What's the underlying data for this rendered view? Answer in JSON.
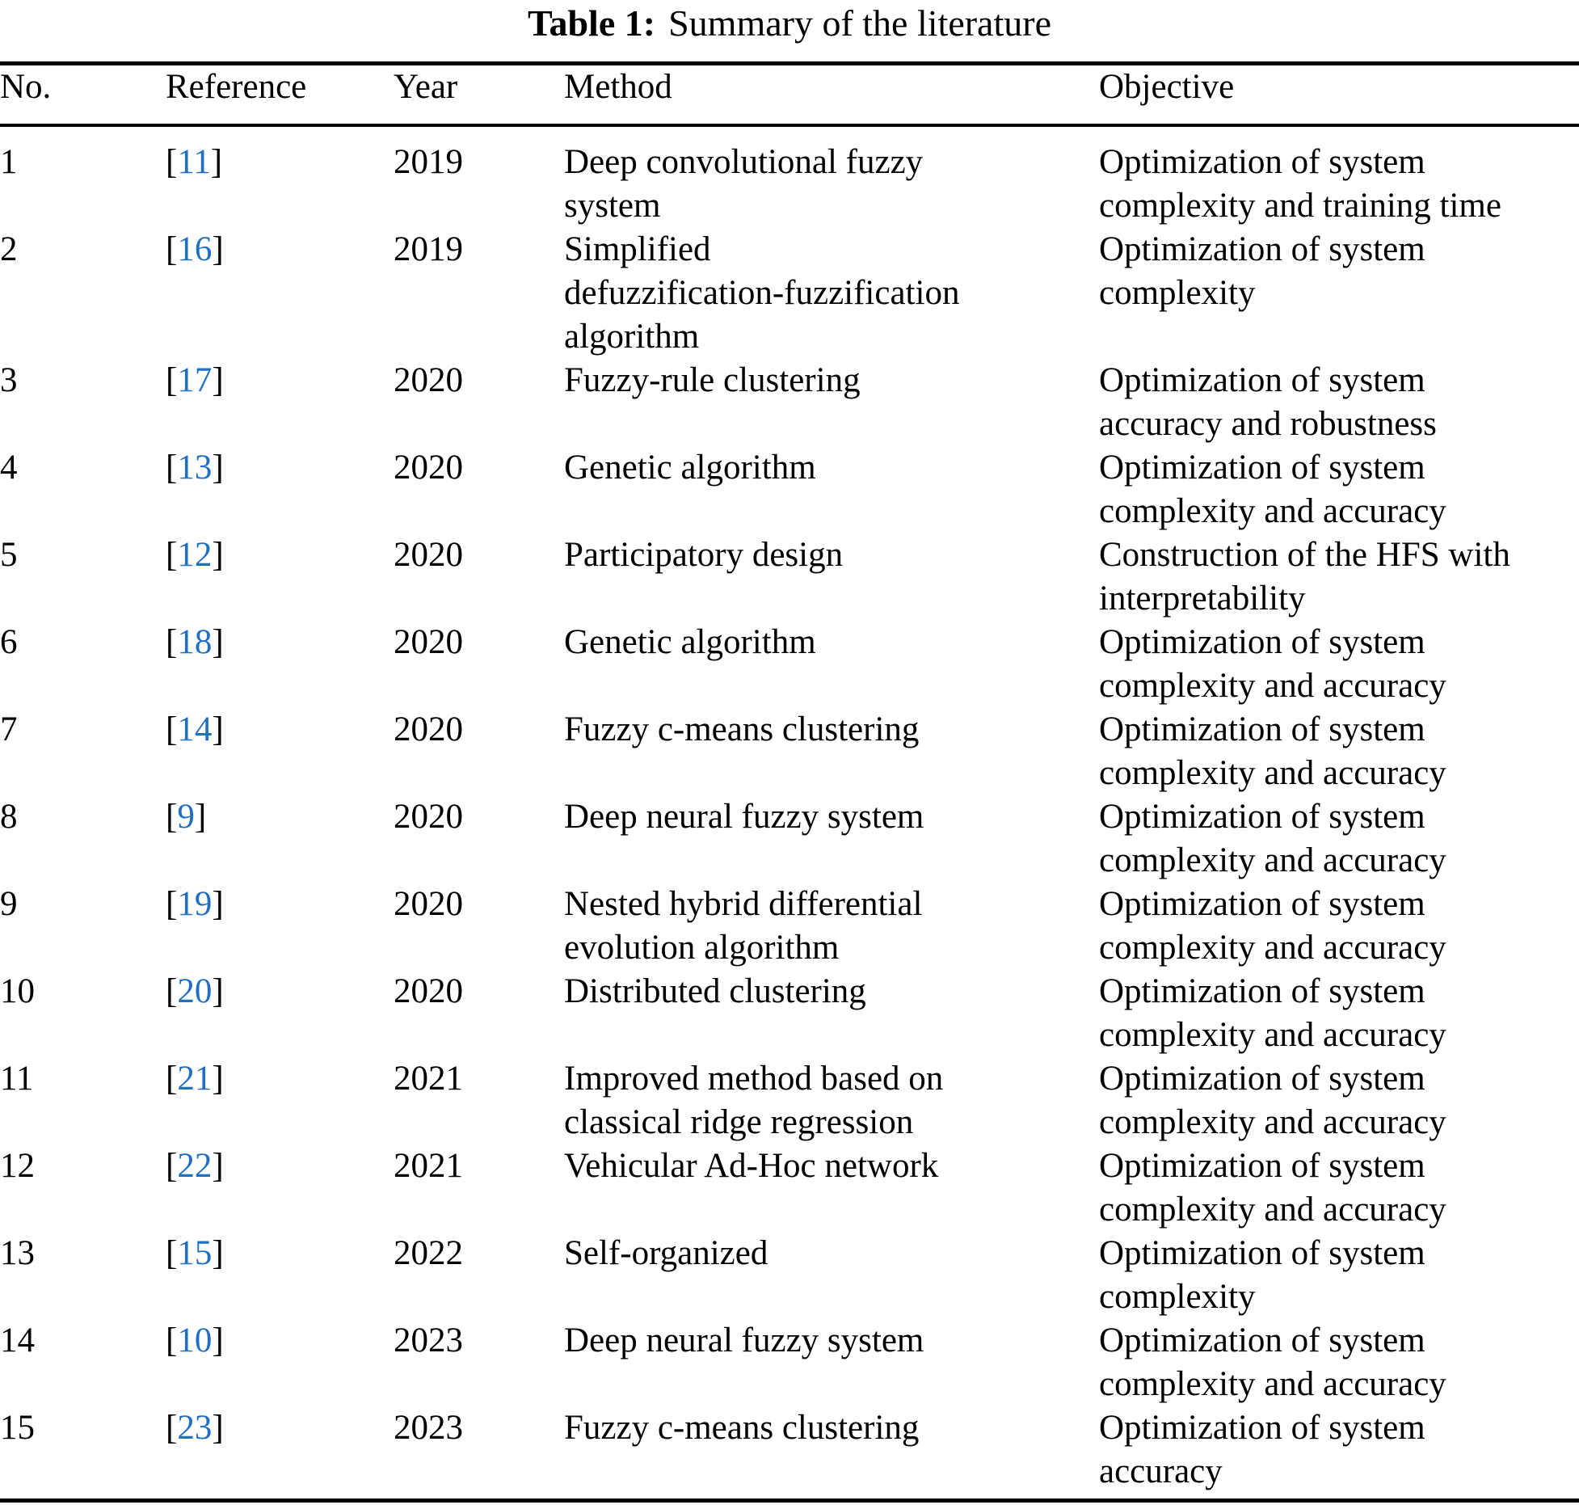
{
  "caption": {
    "label": "Table 1:",
    "text": "Summary of the literature"
  },
  "colors": {
    "text": "#000000",
    "link_blue": "#1f6fc4",
    "rule": "#000000"
  },
  "table": {
    "ref_open": "[",
    "ref_close": "]",
    "columns": [
      "No.",
      "Reference",
      "Year",
      "Method",
      "Objective"
    ],
    "rows": [
      {
        "no": "1",
        "ref": "11",
        "year": "2019",
        "method": "Deep convolutional fuzzy\nsystem",
        "objective": "Optimization of system\ncomplexity and training time"
      },
      {
        "no": "2",
        "ref": "16",
        "year": "2019",
        "method": "Simplified\ndefuzzification-fuzzification\nalgorithm",
        "objective": "Optimization of system\ncomplexity"
      },
      {
        "no": "3",
        "ref": "17",
        "year": "2020",
        "method": "Fuzzy-rule clustering",
        "objective": "Optimization of system\naccuracy and robustness"
      },
      {
        "no": "4",
        "ref": "13",
        "year": "2020",
        "method": "Genetic algorithm",
        "objective": "Optimization of system\ncomplexity and accuracy"
      },
      {
        "no": "5",
        "ref": "12",
        "year": "2020",
        "method": "Participatory design",
        "objective": "Construction of the HFS with\ninterpretability"
      },
      {
        "no": "6",
        "ref": "18",
        "year": "2020",
        "method": "Genetic algorithm",
        "objective": "Optimization of system\ncomplexity and accuracy"
      },
      {
        "no": "7",
        "ref": "14",
        "year": "2020",
        "method": "Fuzzy c-means clustering",
        "objective": "Optimization of system\ncomplexity and accuracy"
      },
      {
        "no": "8",
        "ref": "9",
        "year": "2020",
        "method": "Deep neural fuzzy system",
        "objective": "Optimization of system\ncomplexity and accuracy"
      },
      {
        "no": "9",
        "ref": "19",
        "year": "2020",
        "method": "Nested hybrid differential\nevolution algorithm",
        "objective": "Optimization of system\ncomplexity and accuracy"
      },
      {
        "no": "10",
        "ref": "20",
        "year": "2020",
        "method": "Distributed clustering",
        "objective": "Optimization of system\ncomplexity and accuracy"
      },
      {
        "no": "11",
        "ref": "21",
        "year": "2021",
        "method": "Improved method based on\nclassical ridge regression",
        "objective": "Optimization of system\ncomplexity and accuracy"
      },
      {
        "no": "12",
        "ref": "22",
        "year": "2021",
        "method": "Vehicular Ad-Hoc network",
        "objective": "Optimization of system\ncomplexity and accuracy"
      },
      {
        "no": "13",
        "ref": "15",
        "year": "2022",
        "method": "Self-organized",
        "objective": "Optimization of system\ncomplexity"
      },
      {
        "no": "14",
        "ref": "10",
        "year": "2023",
        "method": "Deep neural fuzzy system",
        "objective": "Optimization of system\ncomplexity and accuracy"
      },
      {
        "no": "15",
        "ref": "23",
        "year": "2023",
        "method": "Fuzzy c-means clustering",
        "objective": "Optimization of system\naccuracy"
      }
    ]
  }
}
